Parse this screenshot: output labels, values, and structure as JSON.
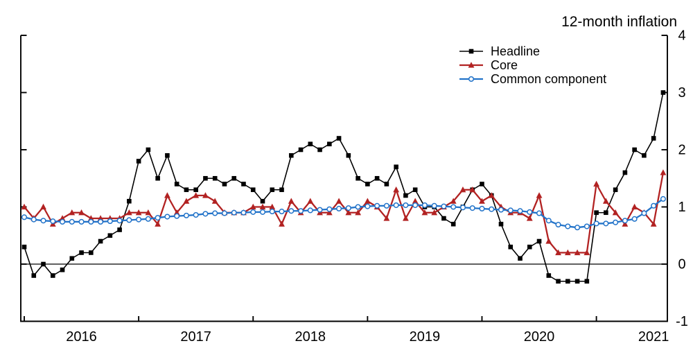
{
  "chart_data": {
    "type": "line",
    "title": "12-month inflation",
    "x_unit": "month",
    "x_start": "2016-01",
    "x_end": "2021-08",
    "n_points": 68,
    "x_tick_labels": [
      "2016",
      "2017",
      "2018",
      "2019",
      "2020",
      "2021"
    ],
    "ylim": [
      -1,
      4
    ],
    "y_ticks": [
      -1,
      0,
      1,
      2,
      3,
      4
    ],
    "zero_line": true,
    "grid": false,
    "legend_position": "top-right-inside",
    "series": [
      {
        "name": "Headline",
        "color": "#000000",
        "marker": "filled-square",
        "line_width": 1.6,
        "values": [
          0.3,
          -0.2,
          0.0,
          -0.2,
          -0.1,
          0.1,
          0.2,
          0.2,
          0.4,
          0.5,
          0.6,
          1.1,
          1.8,
          2.0,
          1.5,
          1.9,
          1.4,
          1.3,
          1.3,
          1.5,
          1.5,
          1.4,
          1.5,
          1.4,
          1.3,
          1.1,
          1.3,
          1.3,
          1.9,
          2.0,
          2.1,
          2.0,
          2.1,
          2.2,
          1.9,
          1.5,
          1.4,
          1.5,
          1.4,
          1.7,
          1.2,
          1.3,
          1.0,
          1.0,
          0.8,
          0.7,
          1.0,
          1.3,
          1.4,
          1.2,
          0.7,
          0.3,
          0.1,
          0.3,
          0.4,
          -0.2,
          -0.3,
          -0.3,
          -0.3,
          -0.3,
          0.9,
          0.9,
          1.3,
          1.6,
          2.0,
          1.9,
          2.2,
          3.0
        ]
      },
      {
        "name": "Core",
        "color": "#b22222",
        "marker": "filled-triangle",
        "line_width": 2.3,
        "values": [
          1.0,
          0.8,
          1.0,
          0.7,
          0.8,
          0.9,
          0.9,
          0.8,
          0.8,
          0.8,
          0.8,
          0.9,
          0.9,
          0.9,
          0.7,
          1.2,
          0.9,
          1.1,
          1.2,
          1.2,
          1.1,
          0.9,
          0.9,
          0.9,
          1.0,
          1.0,
          1.0,
          0.7,
          1.1,
          0.9,
          1.1,
          0.9,
          0.9,
          1.1,
          0.9,
          0.9,
          1.1,
          1.0,
          0.8,
          1.3,
          0.8,
          1.1,
          0.9,
          0.9,
          1.0,
          1.1,
          1.3,
          1.3,
          1.1,
          1.2,
          1.0,
          0.9,
          0.9,
          0.8,
          1.2,
          0.4,
          0.2,
          0.2,
          0.2,
          0.2,
          1.4,
          1.1,
          0.9,
          0.7,
          1.0,
          0.9,
          0.7,
          1.6
        ]
      },
      {
        "name": "Common component",
        "color": "#2273c9",
        "marker": "open-circle",
        "line_width": 2.3,
        "values": [
          0.82,
          0.78,
          0.76,
          0.75,
          0.74,
          0.74,
          0.74,
          0.74,
          0.74,
          0.75,
          0.76,
          0.77,
          0.78,
          0.79,
          0.81,
          0.83,
          0.84,
          0.85,
          0.86,
          0.88,
          0.89,
          0.89,
          0.9,
          0.9,
          0.91,
          0.91,
          0.92,
          0.92,
          0.93,
          0.93,
          0.94,
          0.95,
          0.96,
          0.97,
          0.98,
          1.0,
          1.01,
          1.02,
          1.02,
          1.03,
          1.03,
          1.03,
          1.03,
          1.02,
          1.01,
          1.0,
          0.99,
          0.98,
          0.97,
          0.96,
          0.95,
          0.94,
          0.93,
          0.91,
          0.89,
          0.76,
          0.69,
          0.66,
          0.64,
          0.66,
          0.71,
          0.71,
          0.73,
          0.76,
          0.79,
          0.89,
          1.02,
          1.14
        ]
      }
    ]
  },
  "colors": {
    "background": "#ffffff",
    "axis": "#000000",
    "headline": "#000000",
    "core": "#b22222",
    "common_component": "#2273c9"
  }
}
